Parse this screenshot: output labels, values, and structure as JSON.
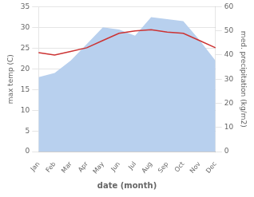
{
  "chart_data": {
    "type": "line",
    "xlabel": "date (month)",
    "ylabel": "max temp (C)",
    "y2label": "med. precipitation (kg/m2)",
    "categories": [
      "Jan",
      "Feb",
      "Mar",
      "Apr",
      "May",
      "Jun",
      "Jul",
      "Aug",
      "Sep",
      "Oct",
      "Nov",
      "Dec"
    ],
    "series": [
      {
        "type": "area",
        "color": "#b8d0ee",
        "values": [
          18,
          19,
          22,
          26,
          30,
          29.5,
          28,
          32.5,
          32,
          31.5,
          27,
          22
        ]
      },
      {
        "type": "line",
        "color": "#cc3333",
        "axis": "y2",
        "values": [
          41,
          40,
          41.5,
          43,
          46,
          49,
          50,
          50.5,
          49.5,
          49,
          46,
          43
        ]
      }
    ],
    "ylim": [
      0,
      35
    ],
    "yticks": [
      0,
      5,
      10,
      15,
      20,
      25,
      30,
      35
    ],
    "y2lim": [
      0,
      60
    ],
    "y2ticks": [
      0,
      10,
      20,
      30,
      40,
      50,
      60
    ],
    "grid": true
  }
}
